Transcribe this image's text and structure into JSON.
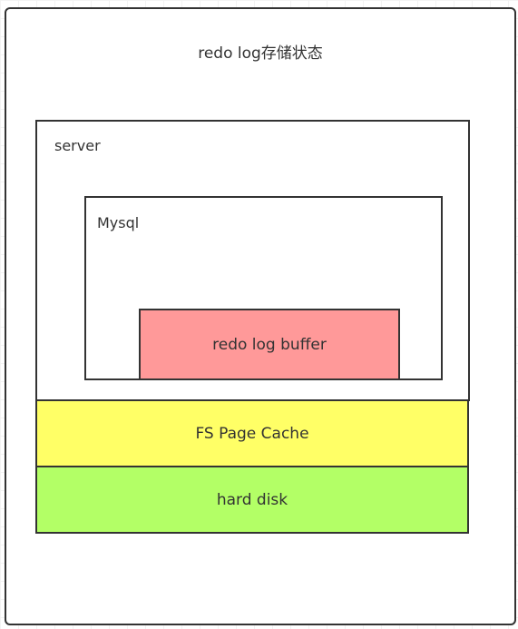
{
  "diagram": {
    "title": "redo log存储状态",
    "server": {
      "label": "server"
    },
    "mysql": {
      "label": "Mysql"
    },
    "redo_log_buffer": {
      "label": "redo log buffer",
      "color": "#ff9999"
    },
    "fs_page_cache": {
      "label": "FS Page Cache",
      "color": "#ffff66"
    },
    "hard_disk": {
      "label": "hard disk",
      "color": "#b3ff66"
    }
  }
}
